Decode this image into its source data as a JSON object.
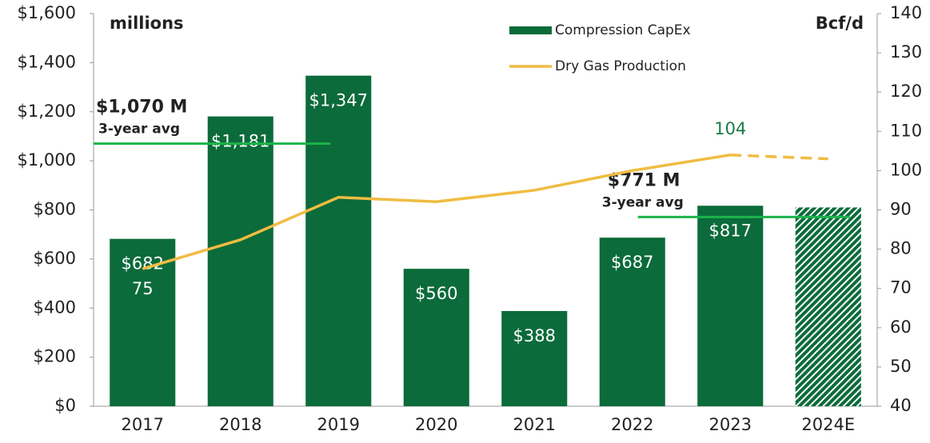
{
  "chart_data": {
    "type": "bar",
    "categories": [
      "2017",
      "2018",
      "2019",
      "2020",
      "2021",
      "2022",
      "2023",
      "2024E"
    ],
    "estimated": "2024E",
    "y_axis_title": "millions",
    "y2_axis_title": "Bcf/d",
    "ylim": [
      0,
      1600
    ],
    "yticks": [
      {
        "value": 0,
        "label": "$0"
      },
      {
        "value": 200,
        "label": "$200"
      },
      {
        "value": 400,
        "label": "$400"
      },
      {
        "value": 600,
        "label": "$600"
      },
      {
        "value": 800,
        "label": "$800"
      },
      {
        "value": 1000,
        "label": "$1,000"
      },
      {
        "value": 1200,
        "label": "$1,200"
      },
      {
        "value": 1400,
        "label": "$1,400"
      },
      {
        "value": 1600,
        "label": "$1,600"
      }
    ],
    "y2lim": [
      40,
      140
    ],
    "y2ticks": [
      40,
      50,
      60,
      70,
      80,
      90,
      100,
      110,
      120,
      130,
      140
    ],
    "legend": "top",
    "series": [
      {
        "name": "Compression CapEx",
        "type": "bar",
        "color": "#0b6b3a",
        "values": [
          682,
          1181,
          1347,
          560,
          388,
          687,
          817,
          810
        ],
        "value_labels": [
          "$682",
          "$1,181",
          "$1,347",
          "$560",
          "$388",
          "$687",
          "$817",
          null
        ]
      },
      {
        "name": "Dry Gas Production",
        "type": "line",
        "axis": "y2",
        "color": "#f0bc42",
        "values": [
          75,
          82.4,
          93.2,
          92.1,
          95,
          100,
          104,
          103
        ],
        "value_labels": [
          "75",
          null,
          null,
          null,
          null,
          null,
          "104",
          null
        ]
      }
    ],
    "annotations": [
      {
        "label": "$1,070 M",
        "sublabel": "3-year avg",
        "value": 1070,
        "color": "#1db34a"
      },
      {
        "label": "$771 M",
        "sublabel": "3-year avg",
        "value": 771,
        "color": "#1db34a"
      }
    ]
  }
}
